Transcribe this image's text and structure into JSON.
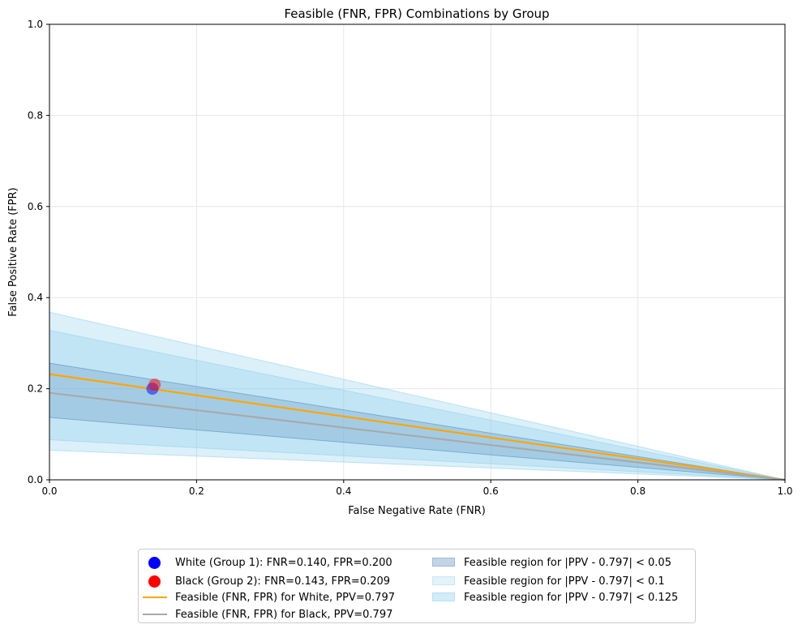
{
  "chart_data": {
    "type": "line",
    "title": "Feasible (FNR, FPR) Combinations by Group",
    "xlabel": "False Negative Rate (FNR)",
    "ylabel": "False Positive Rate (FPR)",
    "xlim": [
      0,
      1
    ],
    "ylim": [
      0,
      1
    ],
    "xticks": [
      "0.0",
      "0.2",
      "0.4",
      "0.6",
      "0.8",
      "1.0"
    ],
    "yticks": [
      "0.0",
      "0.2",
      "0.4",
      "0.6",
      "0.8",
      "1.0"
    ],
    "grid": true,
    "legend_position": "bottom-center",
    "regions": [
      {
        "name": "Feasible region for |PPV - 0.797| < 0.125",
        "y_at_x0": [
          0.065,
          0.368
        ],
        "color": "#87ceeb",
        "alpha": 0.3
      },
      {
        "name": "Feasible region for |PPV - 0.797| < 0.1",
        "y_at_x0": [
          0.088,
          0.328
        ],
        "color": "#87ceeb",
        "alpha": 0.3
      },
      {
        "name": "Feasible region for |PPV - 0.797| < 0.05",
        "y_at_x0": [
          0.137,
          0.256
        ],
        "color": "#4682b4",
        "alpha": 0.25
      }
    ],
    "series": [
      {
        "name": "Feasible (FNR, FPR) for White, PPV=0.797",
        "x": [
          0,
          1
        ],
        "y": [
          0.232,
          0
        ],
        "color": "#ffa500"
      },
      {
        "name": "Feasible (FNR, FPR) for Black, PPV=0.797",
        "x": [
          0,
          1
        ],
        "y": [
          0.191,
          0
        ],
        "color": "#a9a9a9"
      }
    ],
    "points": [
      {
        "name": "White (Group 1): FNR=0.140, FPR=0.200",
        "x": 0.14,
        "y": 0.2,
        "color": "#0000ff"
      },
      {
        "name": "Black (Group 2): FNR=0.143, FPR=0.209",
        "x": 0.143,
        "y": 0.209,
        "color": "#ff0000"
      }
    ],
    "legend_columns": [
      [
        "White (Group 1): FNR=0.140, FPR=0.200",
        "Black (Group 2): FNR=0.143, FPR=0.209",
        "Feasible (FNR, FPR) for White, PPV=0.797",
        "Feasible (FNR, FPR) for Black, PPV=0.797"
      ],
      [
        "Feasible region for |PPV - 0.797| < 0.05",
        "Feasible region for |PPV - 0.797| < 0.1",
        "Feasible region for |PPV - 0.797| < 0.125"
      ]
    ]
  }
}
